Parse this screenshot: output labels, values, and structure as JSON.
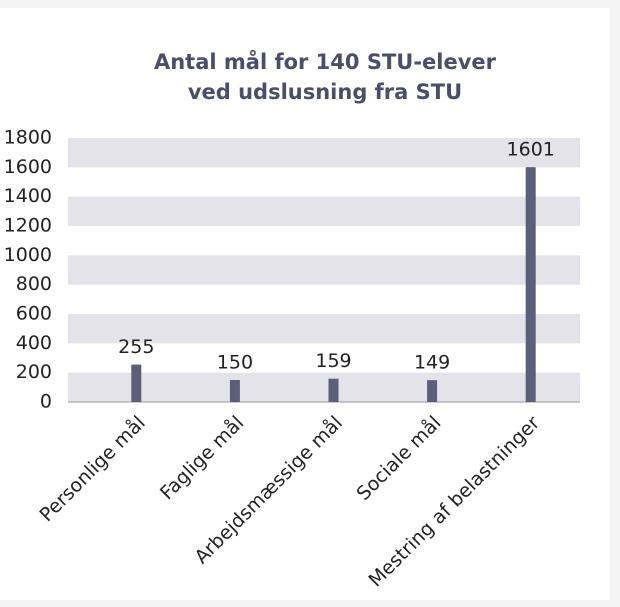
{
  "chart_data": {
    "type": "bar",
    "title": [
      "Antal mål for 140 STU-elever",
      "ved udslusning fra STU"
    ],
    "categories": [
      "Personlige mål",
      "Faglige mål",
      "Arbejdsmæssige mål",
      "Sociale mål",
      "Mestring af belastninger"
    ],
    "values": [
      255,
      150,
      159,
      149,
      1601
    ],
    "color": "#5b5f79",
    "ylim": [
      0,
      1800
    ],
    "yticks": [
      0,
      200,
      400,
      600,
      800,
      1000,
      1200,
      1400,
      1600,
      1800
    ],
    "grid": true
  }
}
